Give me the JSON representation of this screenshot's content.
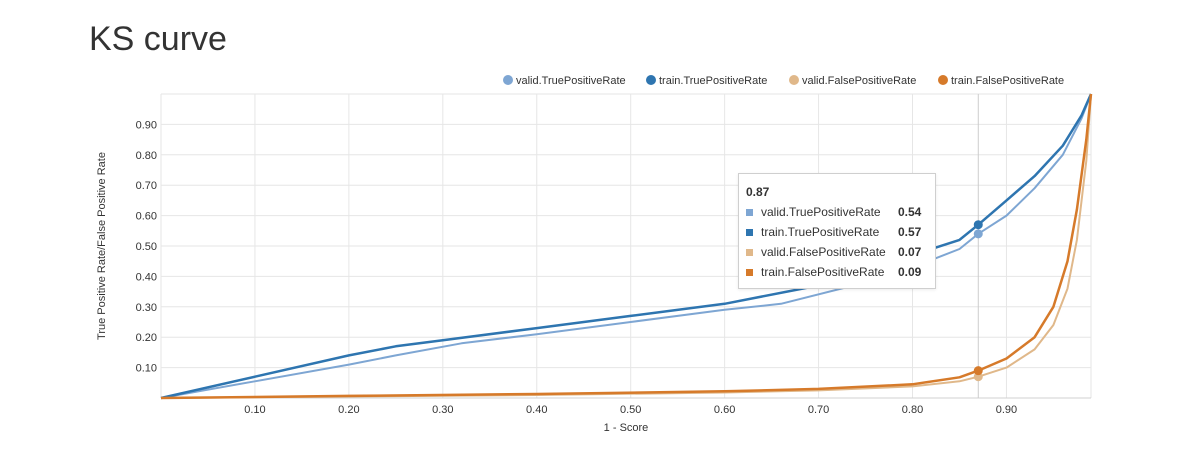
{
  "title": "KS curve",
  "chart_data": {
    "type": "line",
    "xlabel": "1 - Score",
    "ylabel": "True Positive Rate/False Positive Rate",
    "xlim": [
      0,
      0.99
    ],
    "ylim": [
      0,
      1.0
    ],
    "xticks": [
      "0.10",
      "0.20",
      "0.30",
      "0.40",
      "0.50",
      "0.60",
      "0.70",
      "0.80",
      "0.90"
    ],
    "yticks": [
      "0.10",
      "0.20",
      "0.30",
      "0.40",
      "0.50",
      "0.60",
      "0.70",
      "0.80",
      "0.90"
    ],
    "grid": true,
    "legend_position": "top-right",
    "series": [
      {
        "name": "valid.TruePositiveRate",
        "color": "#7ea6d3",
        "x": [
          0,
          0.1,
          0.2,
          0.25,
          0.32,
          0.4,
          0.5,
          0.6,
          0.66,
          0.75,
          0.8,
          0.85,
          0.87,
          0.9,
          0.93,
          0.96,
          0.98,
          0.99
        ],
        "y": [
          0,
          0.055,
          0.11,
          0.14,
          0.18,
          0.21,
          0.25,
          0.29,
          0.31,
          0.38,
          0.43,
          0.49,
          0.54,
          0.6,
          0.69,
          0.8,
          0.92,
          1.0
        ]
      },
      {
        "name": "train.TruePositiveRate",
        "color": "#2e75b0",
        "x": [
          0,
          0.1,
          0.2,
          0.25,
          0.3,
          0.4,
          0.5,
          0.6,
          0.7,
          0.8,
          0.85,
          0.87,
          0.9,
          0.93,
          0.96,
          0.98,
          0.99
        ],
        "y": [
          0,
          0.07,
          0.14,
          0.17,
          0.19,
          0.23,
          0.27,
          0.31,
          0.37,
          0.47,
          0.52,
          0.57,
          0.65,
          0.73,
          0.83,
          0.93,
          1.0
        ]
      },
      {
        "name": "valid.FalsePositiveRate",
        "color": "#e0b88a",
        "x": [
          0,
          0.2,
          0.4,
          0.6,
          0.7,
          0.8,
          0.85,
          0.87,
          0.9,
          0.93,
          0.95,
          0.965,
          0.975,
          0.985,
          0.99
        ],
        "y": [
          0,
          0.005,
          0.01,
          0.018,
          0.025,
          0.038,
          0.055,
          0.07,
          0.1,
          0.16,
          0.24,
          0.36,
          0.52,
          0.78,
          1.0
        ]
      },
      {
        "name": "train.FalsePositiveRate",
        "color": "#d67a2a",
        "x": [
          0,
          0.2,
          0.4,
          0.6,
          0.7,
          0.8,
          0.85,
          0.87,
          0.9,
          0.93,
          0.95,
          0.965,
          0.975,
          0.985,
          0.99
        ],
        "y": [
          0,
          0.007,
          0.013,
          0.022,
          0.03,
          0.045,
          0.068,
          0.09,
          0.13,
          0.2,
          0.3,
          0.45,
          0.62,
          0.85,
          1.0
        ]
      }
    ],
    "tooltip": {
      "x": "0.87",
      "rows": [
        {
          "name": "valid.TruePositiveRate",
          "value": "0.54",
          "color": "#7ea6d3"
        },
        {
          "name": "train.TruePositiveRate",
          "value": "0.57",
          "color": "#2e75b0"
        },
        {
          "name": "valid.FalsePositiveRate",
          "value": "0.07",
          "color": "#e0b88a"
        },
        {
          "name": "train.FalsePositiveRate",
          "value": "0.09",
          "color": "#d67a2a"
        }
      ]
    }
  }
}
